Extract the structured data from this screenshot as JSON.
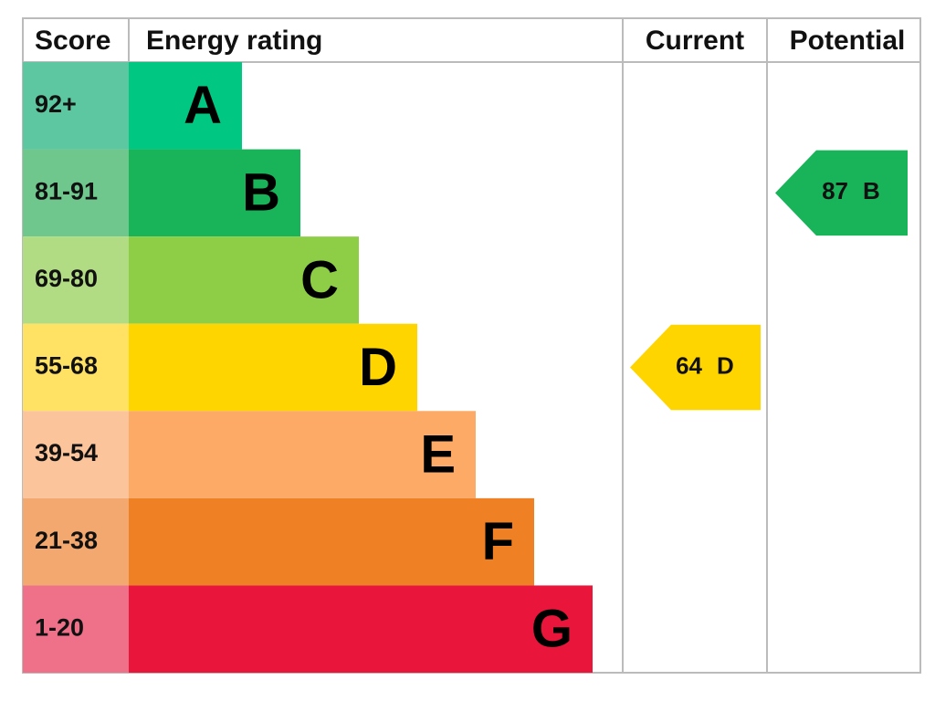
{
  "headers": [
    "Score",
    "Energy rating",
    "Current",
    "Potential"
  ],
  "bands": [
    {
      "score": "92+",
      "letter": "A",
      "color": "#00c781",
      "score_color": "#5cc7a0"
    },
    {
      "score": "81-91",
      "letter": "B",
      "color": "#19b459",
      "score_color": "#6fc78d"
    },
    {
      "score": "69-80",
      "letter": "C",
      "color": "#8dce46",
      "score_color": "#b2dc84"
    },
    {
      "score": "55-68",
      "letter": "D",
      "color": "#ffd500",
      "score_color": "#ffe163"
    },
    {
      "score": "39-54",
      "letter": "E",
      "color": "#fcaa65",
      "score_color": "#fcc49a"
    },
    {
      "score": "21-38",
      "letter": "F",
      "color": "#ef8023",
      "score_color": "#f2a86e"
    },
    {
      "score": "1-20",
      "letter": "G",
      "color": "#e9153b",
      "score_color": "#ef7089"
    }
  ],
  "current": {
    "score": 64,
    "letter": "D"
  },
  "potential": {
    "score": 87,
    "letter": "B"
  }
}
